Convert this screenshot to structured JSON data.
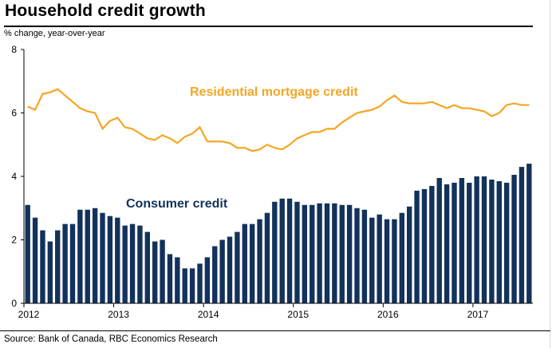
{
  "title": "Household credit growth",
  "ylabel": "% change, year-over-year",
  "source": "Source: Bank of Canada, RBC Economics Research",
  "chart_data": {
    "type": "bar",
    "ylim": [
      0,
      8
    ],
    "yticks": [
      0,
      2,
      4,
      6,
      8
    ],
    "x_start": "2012-01",
    "xtick_labels": [
      "2012",
      "2013",
      "2014",
      "2015",
      "2016",
      "2017"
    ],
    "grid": false,
    "series": [
      {
        "name": "Consumer credit",
        "type": "bar",
        "color": "#13325b",
        "values": [
          3.1,
          2.7,
          2.3,
          1.95,
          2.3,
          2.5,
          2.5,
          2.95,
          2.95,
          3.0,
          2.85,
          2.75,
          2.7,
          2.45,
          2.5,
          2.45,
          2.25,
          1.95,
          2.0,
          1.55,
          1.45,
          1.1,
          1.1,
          1.25,
          1.45,
          1.8,
          2.0,
          2.1,
          2.25,
          2.5,
          2.5,
          2.65,
          2.85,
          3.2,
          3.3,
          3.3,
          3.2,
          3.1,
          3.1,
          3.15,
          3.15,
          3.15,
          3.1,
          3.1,
          3.0,
          2.95,
          2.7,
          2.8,
          2.65,
          2.65,
          2.85,
          3.05,
          3.55,
          3.6,
          3.7,
          3.95,
          3.75,
          3.8,
          3.95,
          3.8,
          4.0,
          4.0,
          3.9,
          3.85,
          3.8,
          4.05,
          4.3,
          4.4
        ]
      },
      {
        "name": "Residential mortgage credit",
        "type": "line",
        "color": "#f5a623",
        "values": [
          6.2,
          6.1,
          6.6,
          6.65,
          6.75,
          6.55,
          6.35,
          6.15,
          6.05,
          6.0,
          5.5,
          5.75,
          5.85,
          5.55,
          5.5,
          5.35,
          5.2,
          5.15,
          5.3,
          5.2,
          5.05,
          5.25,
          5.35,
          5.55,
          5.1,
          5.1,
          5.1,
          5.05,
          4.9,
          4.9,
          4.8,
          4.85,
          5.0,
          4.9,
          4.85,
          5.0,
          5.2,
          5.3,
          5.4,
          5.4,
          5.5,
          5.5,
          5.7,
          5.85,
          6.0,
          6.05,
          6.1,
          6.2,
          6.4,
          6.55,
          6.35,
          6.3,
          6.3,
          6.3,
          6.35,
          6.25,
          6.15,
          6.25,
          6.15,
          6.15,
          6.1,
          6.05,
          5.9,
          6.0,
          6.25,
          6.3,
          6.25,
          6.25
        ]
      }
    ]
  }
}
